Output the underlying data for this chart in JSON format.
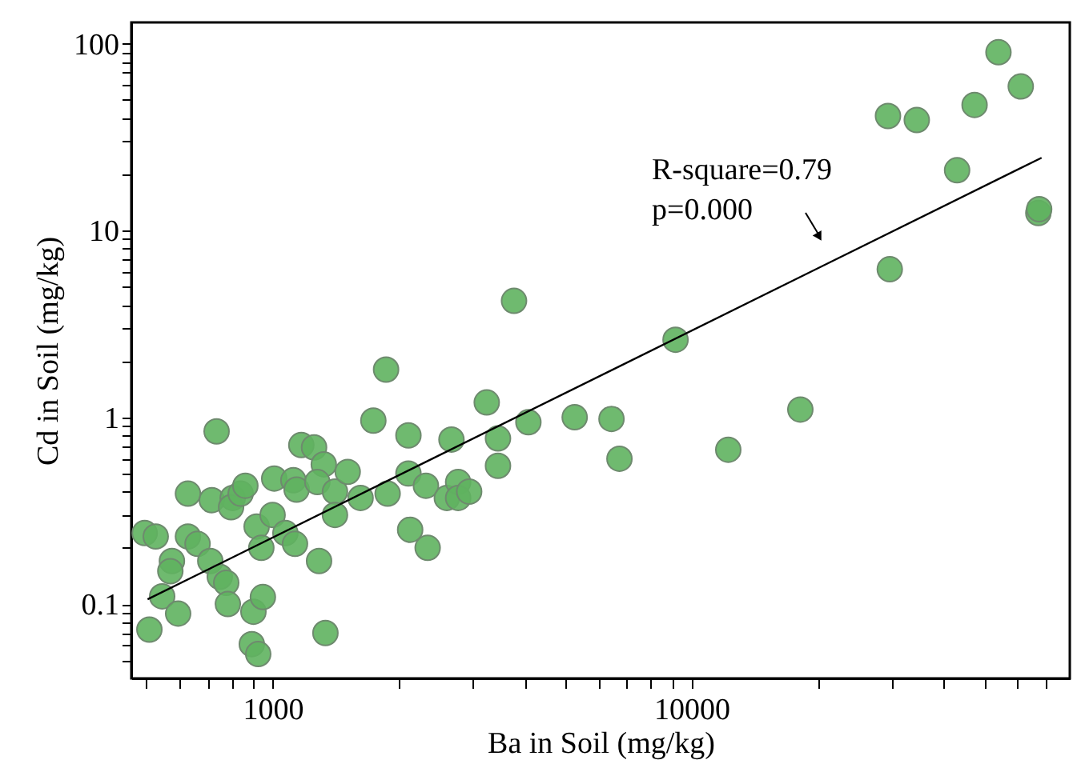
{
  "chart_data": {
    "type": "scatter",
    "xlabel": "Ba in Soil (mg/kg)",
    "ylabel": "Cd in Soil (mg/kg)",
    "log": "xy",
    "grid": false,
    "xlim": [
      460,
      80000
    ],
    "ylim": [
      0.04,
      130
    ],
    "xticks": [
      {
        "value": 500,
        "label": null
      },
      {
        "value": 600,
        "label": null
      },
      {
        "value": 700,
        "label": null
      },
      {
        "value": 800,
        "label": null
      },
      {
        "value": 900,
        "label": null
      },
      1000,
      {
        "value": 2000,
        "label": null
      },
      {
        "value": 3000,
        "label": null
      },
      {
        "value": 4000,
        "label": null
      },
      {
        "value": 5000,
        "label": null
      },
      {
        "value": 6000,
        "label": null
      },
      {
        "value": 7000,
        "label": null
      },
      {
        "value": 8000,
        "label": null
      },
      {
        "value": 9000,
        "label": null
      },
      10000,
      {
        "value": 20000,
        "label": null
      },
      {
        "value": 30000,
        "label": null
      },
      {
        "value": 40000,
        "label": null
      },
      {
        "value": 50000,
        "label": null
      },
      {
        "value": 60000,
        "label": null
      },
      {
        "value": 70000,
        "label": null
      }
    ],
    "yticks": [
      {
        "value": 0.05,
        "label": null
      },
      {
        "value": 0.06,
        "label": null
      },
      {
        "value": 0.07,
        "label": null
      },
      {
        "value": 0.08,
        "label": null
      },
      {
        "value": 0.09,
        "label": null
      },
      0.1,
      {
        "value": 0.2,
        "label": null
      },
      {
        "value": 0.3,
        "label": null
      },
      {
        "value": 0.4,
        "label": null
      },
      {
        "value": 0.5,
        "label": null
      },
      {
        "value": 0.6,
        "label": null
      },
      {
        "value": 0.7,
        "label": null
      },
      {
        "value": 0.8,
        "label": null
      },
      {
        "value": 0.9,
        "label": null
      },
      1,
      {
        "value": 2,
        "label": null
      },
      {
        "value": 3,
        "label": null
      },
      {
        "value": 4,
        "label": null
      },
      {
        "value": 5,
        "label": null
      },
      {
        "value": 6,
        "label": null
      },
      {
        "value": 7,
        "label": null
      },
      {
        "value": 8,
        "label": null
      },
      {
        "value": 9,
        "label": null
      },
      10,
      {
        "value": 20,
        "label": null
      },
      {
        "value": 30,
        "label": null
      },
      {
        "value": 40,
        "label": null
      },
      {
        "value": 50,
        "label": null
      },
      {
        "value": 60,
        "label": null
      },
      {
        "value": 70,
        "label": null
      },
      {
        "value": 80,
        "label": null
      },
      {
        "value": 90,
        "label": null
      },
      100
    ],
    "annotations": [
      "R-square=0.79\np=0.000"
    ],
    "series": [
      {
        "marker": "circle",
        "color": "#5fb35f",
        "x": [
          495,
          526,
          575,
          570,
          545,
          595,
          508,
          628,
          662,
          710,
          748,
          775,
          782,
          628,
          716,
          735,
          803,
          796,
          839,
          861,
          916,
          940,
          1000,
          1009,
          1121,
          1141,
          1073,
          1131,
          1171,
          1256,
          1325,
          1279,
          1409,
          1409,
          1511,
          1291,
          1337,
          1622,
          1740,
          1866,
          1882,
          2110,
          2110,
          2130,
          2323,
          2345,
          2606,
          2673,
          2773,
          2773,
          2946,
          3245,
          3452,
          3452,
          3770,
          4080,
          5262,
          6442,
          6730,
          9160,
          12240,
          18190,
          29450,
          34500,
          29740,
          47400,
          43060,
          54050,
          61100,
          67300,
          67600,
          892,
          924,
          900,
          948
        ],
        "values": [
          0.24,
          0.23,
          0.17,
          0.15,
          0.11,
          0.089,
          0.073,
          0.23,
          0.21,
          0.17,
          0.14,
          0.13,
          0.1,
          0.39,
          0.36,
          0.84,
          0.37,
          0.33,
          0.39,
          0.43,
          0.26,
          0.2,
          0.3,
          0.47,
          0.46,
          0.41,
          0.24,
          0.21,
          0.71,
          0.69,
          0.56,
          0.45,
          0.4,
          0.3,
          0.51,
          0.17,
          0.07,
          0.37,
          0.96,
          1.8,
          0.39,
          0.8,
          0.5,
          0.25,
          0.43,
          0.2,
          0.37,
          0.76,
          0.45,
          0.37,
          0.4,
          1.2,
          0.77,
          0.55,
          4.2,
          0.94,
          1.0,
          0.98,
          0.6,
          2.6,
          0.67,
          1.1,
          41,
          39,
          6.2,
          47,
          21,
          90,
          59,
          12.4,
          13,
          0.061,
          0.054,
          0.091,
          0.109
        ]
      },
      {
        "type": "line",
        "color": "#000000",
        "x": [
          503,
          68500
        ],
        "values": [
          0.106,
          24.5
        ]
      }
    ]
  }
}
